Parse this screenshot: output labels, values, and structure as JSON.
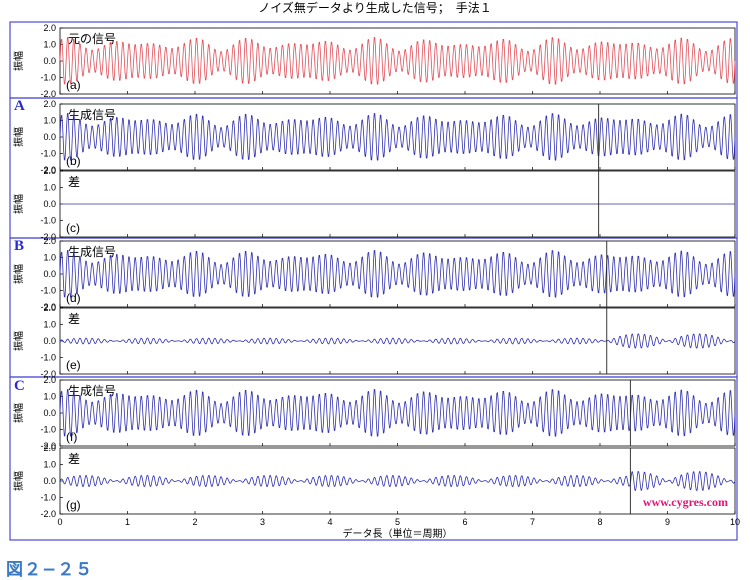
{
  "figure_label": "図２−２５",
  "watermark": "www.cygres.com",
  "colors": {
    "original": "#e0505a",
    "generated": "#3030b0",
    "diff": "#3030b0",
    "frame_outer": "#4a4ad8",
    "axis": "#000000",
    "group_label": "#2a2ad0",
    "watermark": "#e0157a",
    "figure_label": "#3a78c8"
  },
  "chart_data": {
    "type": "line",
    "title": "ノイズ無データより生成した信号；　手法１",
    "xlabel": "データ長（単位＝周期）",
    "ylabel": "振幅",
    "xlim": [
      0,
      10
    ],
    "ylim": [
      -2.0,
      2.0
    ],
    "x_ticks": [
      "0",
      "1",
      "2",
      "3",
      "4",
      "5",
      "6",
      "7",
      "8",
      "9",
      "10"
    ],
    "y_ticks": [
      "2.0",
      "1.0",
      "0.0",
      "-1.0",
      "-2.0"
    ],
    "groups": [
      "A",
      "B",
      "C"
    ],
    "panels": [
      {
        "id": "a",
        "sublabel": "(a)",
        "label": "元の信号",
        "kind": "signal",
        "color": "original",
        "group": "",
        "marker_x": null,
        "diff_start": null
      },
      {
        "id": "b",
        "sublabel": "(b)",
        "label": "生成信号",
        "kind": "signal",
        "color": "generated",
        "group": "A",
        "marker_x": 7.98,
        "diff_start": null
      },
      {
        "id": "c",
        "sublabel": "(c)",
        "label": "差",
        "kind": "flat",
        "color": "diff",
        "group": "",
        "marker_x": 7.98,
        "diff_start": null
      },
      {
        "id": "d",
        "sublabel": "(d)",
        "label": "生成信号",
        "kind": "signal",
        "color": "generated",
        "group": "B",
        "marker_x": 8.1,
        "diff_start": null
      },
      {
        "id": "e",
        "sublabel": "(e)",
        "label": "差",
        "kind": "diff",
        "amp": 0.18,
        "color": "diff",
        "group": "",
        "marker_x": 8.1,
        "diff_start": 0,
        "amp_after": 0.45
      },
      {
        "id": "f",
        "sublabel": "(f)",
        "label": "生成信号",
        "kind": "signal",
        "color": "generated",
        "group": "C",
        "marker_x": 8.45,
        "diff_start": null
      },
      {
        "id": "g",
        "sublabel": "(g)",
        "label": "差",
        "kind": "diff",
        "amp": 0.35,
        "color": "diff",
        "group": "",
        "marker_x": 8.45,
        "diff_start": 0,
        "amp_after": 0.6
      }
    ]
  }
}
